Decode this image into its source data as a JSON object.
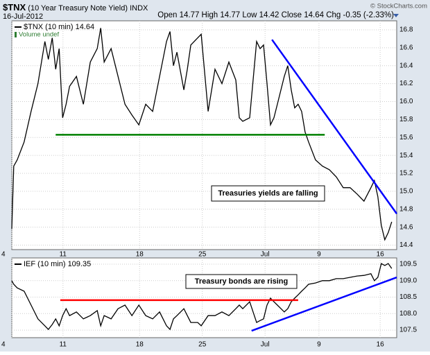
{
  "header": {
    "symbol": "$TNX",
    "name": "(10 Year Treasury Note Yield)",
    "exchange": "INDX",
    "date": "16-Jul-2012",
    "quote": "Open 14.77  High 14.77  Low 14.42  Close 14.64  Chg -0.35 (-2.33%)",
    "source": "© StockCharts.com"
  },
  "chart_data": [
    {
      "type": "line",
      "legend": "$TNX (10 min) 14.64",
      "volume_note": "Volume undef",
      "annotation": "Treasuries yields are falling",
      "x": [
        0,
        0.5,
        1.4,
        3.2,
        5.0,
        6.8,
        8.6,
        9.5,
        10.5,
        11.4,
        12.3,
        13.2,
        14.1,
        15.0,
        16.8,
        18.6,
        20.4,
        22.2,
        23.1,
        24.0,
        25.8,
        27.6,
        29.4,
        31.2,
        33.0,
        34.8,
        36.6,
        38.4,
        40.2,
        41.1,
        42.0,
        42.9,
        44.7,
        45.6,
        46.5,
        48.3,
        49.2,
        51.0,
        52.8,
        54.6,
        56.4,
        58.2,
        59.1,
        60.0,
        61.8,
        63.6,
        64.5,
        65.4,
        66.3,
        67.2,
        68.1,
        69.0,
        70.8,
        71.7,
        72.6,
        73.5,
        74.4,
        75.3,
        76.2,
        77.1,
        78.9,
        80.7,
        82.5,
        84.3,
        86.1,
        87.9,
        89.7,
        91.5,
        93.3,
        94.2,
        95.1,
        96.0,
        96.9,
        97.8,
        98.7
      ],
      "series": [
        {
          "name": "$TNX",
          "color": "#000000",
          "values": [
            14.58,
            15.28,
            15.35,
            15.55,
            15.89,
            16.2,
            16.67,
            16.47,
            16.71,
            16.36,
            16.59,
            15.82,
            15.97,
            16.17,
            16.28,
            15.97,
            16.44,
            16.59,
            16.82,
            16.44,
            16.59,
            16.28,
            15.97,
            15.85,
            15.74,
            15.97,
            15.89,
            16.28,
            16.67,
            16.78,
            16.4,
            16.55,
            16.13,
            16.36,
            16.63,
            16.71,
            16.75,
            15.89,
            16.36,
            16.2,
            16.44,
            16.24,
            15.82,
            15.78,
            15.82,
            16.67,
            16.59,
            16.63,
            16.2,
            15.74,
            15.82,
            15.97,
            16.28,
            16.4,
            16.13,
            15.93,
            15.97,
            15.89,
            15.66,
            15.55,
            15.35,
            15.28,
            15.24,
            15.16,
            15.04,
            15.04,
            14.97,
            14.89,
            15.04,
            15.12,
            14.94,
            14.62,
            14.46,
            14.54,
            14.66
          ]
        }
      ],
      "lines": [
        {
          "color": "#008000",
          "x": [
            11.4,
            81.3
          ],
          "y": [
            15.63,
            15.63
          ]
        },
        {
          "color": "#0000ff",
          "x": [
            67.6,
            100
          ],
          "y": [
            16.69,
            14.75
          ]
        }
      ],
      "xlim": [
        0,
        100
      ],
      "ylim": [
        14.35,
        16.9
      ],
      "xticks": [
        {
          "value": 0,
          "label": "4"
        },
        {
          "value": 13.3,
          "label": "11"
        },
        {
          "value": 33.2,
          "label": "18"
        },
        {
          "value": 49.5,
          "label": "25"
        },
        {
          "value": 65.8,
          "label": "Jul"
        },
        {
          "value": 79.8,
          "label": "9"
        },
        {
          "value": 95.7,
          "label": "16"
        }
      ],
      "yticks": [
        14.4,
        14.6,
        14.8,
        {
          "value": 15,
          "label": "15.0"
        },
        15.2,
        15.4,
        15.6,
        15.8,
        {
          "value": 16,
          "label": "16.0"
        },
        16.2,
        16.4,
        16.6,
        16.8
      ],
      "grid": true
    },
    {
      "type": "line",
      "legend": "IEF (10 min) 109.35",
      "annotation": "Treasury bonds are rising",
      "x": [
        0,
        0.5,
        1.4,
        3.2,
        5.0,
        6.8,
        8.6,
        9.5,
        10.5,
        11.4,
        12.3,
        13.2,
        14.1,
        15.0,
        16.8,
        18.6,
        20.4,
        22.2,
        23.1,
        24.0,
        25.8,
        27.6,
        29.4,
        31.2,
        33.0,
        34.8,
        36.6,
        38.4,
        40.2,
        41.1,
        42.0,
        42.9,
        44.7,
        45.6,
        46.5,
        48.3,
        49.2,
        51.0,
        52.8,
        54.6,
        56.4,
        58.2,
        59.1,
        60.0,
        61.8,
        63.6,
        64.5,
        65.4,
        66.3,
        67.2,
        68.1,
        69.0,
        70.8,
        71.7,
        72.6,
        73.5,
        74.4,
        75.3,
        76.2,
        77.1,
        78.9,
        80.7,
        82.5,
        84.3,
        86.1,
        87.9,
        89.7,
        91.5,
        93.3,
        94.2,
        95.1,
        96.0,
        96.9,
        97.8,
        98.7
      ],
      "series": [
        {
          "name": "IEF",
          "color": "#000000",
          "values": [
            109.0,
            108.89,
            108.78,
            108.68,
            108.26,
            107.84,
            107.63,
            107.52,
            107.67,
            107.84,
            107.63,
            107.94,
            108.15,
            107.94,
            108.05,
            107.84,
            107.94,
            108.09,
            107.63,
            107.94,
            107.84,
            108.15,
            108.26,
            107.94,
            108.26,
            107.94,
            107.84,
            108.05,
            107.63,
            107.52,
            107.84,
            107.94,
            108.15,
            107.94,
            107.73,
            107.73,
            107.63,
            107.94,
            107.94,
            108.05,
            107.94,
            108.15,
            108.26,
            108.15,
            108.36,
            107.73,
            107.79,
            107.84,
            108.26,
            108.47,
            108.36,
            108.26,
            108.05,
            108.15,
            108.36,
            108.47,
            108.57,
            108.68,
            108.78,
            108.89,
            108.93,
            109.0,
            109.0,
            109.06,
            109.06,
            109.1,
            109.14,
            109.16,
            109.21,
            109.0,
            109.1,
            109.52,
            109.46,
            109.52,
            109.37
          ]
        }
      ],
      "lines": [
        {
          "color": "#ff0000",
          "x": [
            12.6,
            74.4
          ],
          "y": [
            108.41,
            108.41
          ]
        },
        {
          "color": "#0000ff",
          "x": [
            62.3,
            100
          ],
          "y": [
            107.48,
            109.1
          ]
        }
      ],
      "xlim": [
        0,
        100
      ],
      "ylim": [
        107.27,
        109.69
      ],
      "xticks": [
        {
          "value": 0,
          "label": "4"
        },
        {
          "value": 13.3,
          "label": "11"
        },
        {
          "value": 33.2,
          "label": "18"
        },
        {
          "value": 49.5,
          "label": "25"
        },
        {
          "value": 65.8,
          "label": "Jul"
        },
        {
          "value": 79.8,
          "label": "9"
        },
        {
          "value": 95.7,
          "label": "16"
        }
      ],
      "yticks": [
        107.5,
        {
          "value": 108,
          "label": "108.0"
        },
        108.5,
        {
          "value": 109,
          "label": "109.0"
        },
        109.5
      ],
      "grid": true
    }
  ]
}
